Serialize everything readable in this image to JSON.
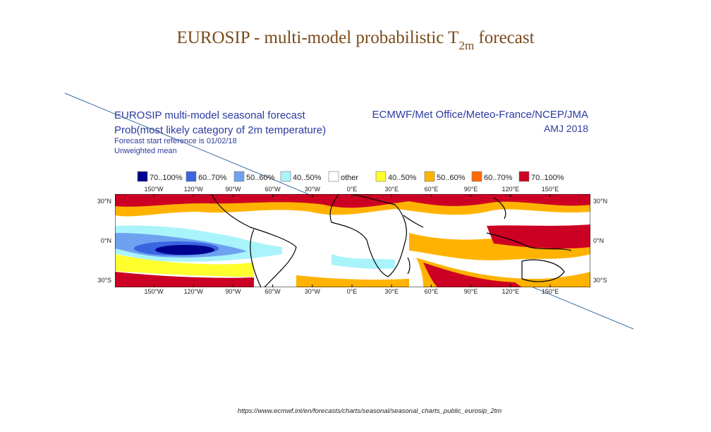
{
  "title": {
    "text": "EUROSIP - multi-model probabilistic T",
    "subscript": "2m",
    "suffix": " forecast"
  },
  "map": {
    "heading": [
      "EUROSIP multi-model seasonal forecast",
      "Prob(most likely category of 2m temperature)"
    ],
    "notes": [
      "Forecast start reference is 01/02/18",
      "Unweighted mean"
    ],
    "source": "ECMWF/Met Office/Meteo-France/NCEP/JMA",
    "period": "AMJ 2018",
    "legend": [
      {
        "label": "70..100%",
        "color": "#00008f"
      },
      {
        "label": "60..70%",
        "color": "#3a64e0"
      },
      {
        "label": "50..60%",
        "color": "#6ea2f0"
      },
      {
        "label": "40..50%",
        "color": "#a8f4fa"
      },
      {
        "label": "other",
        "color": "#ffffff"
      },
      {
        "label": "40..50%",
        "color": "#ffff2e"
      },
      {
        "label": "50..60%",
        "color": "#ffb300"
      },
      {
        "label": "60..70%",
        "color": "#ff6a00"
      },
      {
        "label": "70..100%",
        "color": "#cc0022"
      }
    ],
    "longitudes": [
      "150°W",
      "120°W",
      "90°W",
      "60°W",
      "30°W",
      "0°E",
      "30°E",
      "60°E",
      "90°E",
      "120°E",
      "150°E"
    ],
    "latitudes": [
      "30°N",
      "0°N",
      "30°S"
    ]
  },
  "footer": {
    "url": "https://www.ecmwf.int/en/forecasts/charts/seasonal/seasonal_charts_public_eurosip_2tm"
  }
}
